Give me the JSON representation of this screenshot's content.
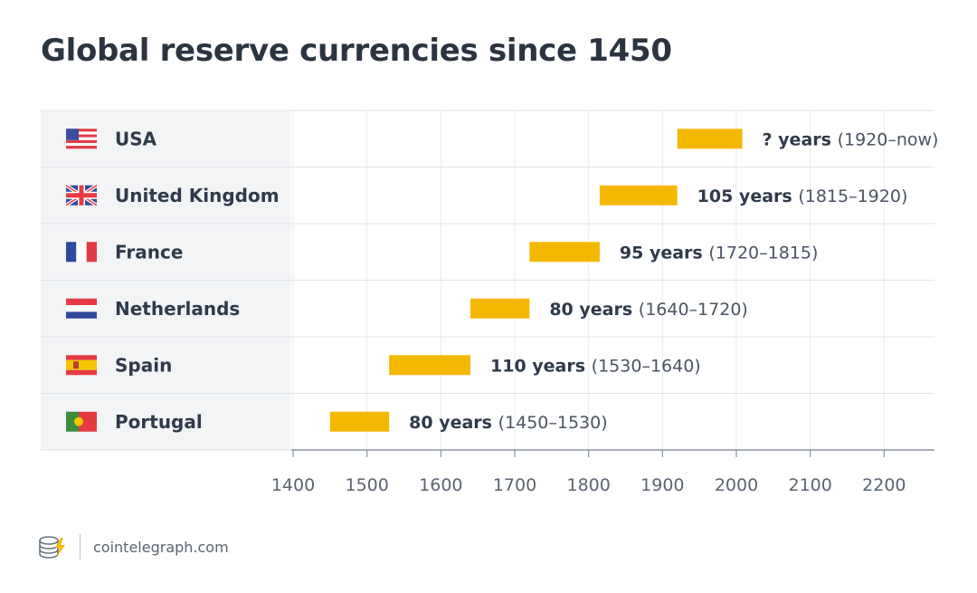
{
  "chart_data": {
    "type": "bar",
    "title": "Global reserve currencies since 1450",
    "categories": [
      "USA",
      "United Kingdom",
      "France",
      "Netherlands",
      "Spain",
      "Portugal"
    ],
    "flags": [
      "us-flag-icon",
      "uk-flag-icon",
      "france-flag-icon",
      "netherlands-flag-icon",
      "spain-flag-icon",
      "portugal-flag-icon"
    ],
    "ranges": [
      {
        "start": 1920,
        "end": 2008
      },
      {
        "start": 1815,
        "end": 1920
      },
      {
        "start": 1720,
        "end": 1815
      },
      {
        "start": 1640,
        "end": 1720
      },
      {
        "start": 1530,
        "end": 1640
      },
      {
        "start": 1450,
        "end": 1530
      }
    ],
    "labels": [
      {
        "bold": "? years",
        "paren": "(1920–now)"
      },
      {
        "bold": "105 years",
        "paren": "(1815–1920)"
      },
      {
        "bold": "95 years",
        "paren": "(1720–1815)"
      },
      {
        "bold": "80 years",
        "paren": "(1640–1720)"
      },
      {
        "bold": "110 years",
        "paren": "(1530–1640)"
      },
      {
        "bold": "80 years",
        "paren": "(1450–1530)"
      }
    ],
    "xticks": [
      1400,
      1500,
      1600,
      1700,
      1800,
      1900,
      2000,
      2100,
      2200
    ],
    "xlim": [
      1400,
      2270
    ],
    "grid": true,
    "bar_color": "#f5b800"
  },
  "footer": {
    "site": "cointelegraph.com"
  },
  "colors": {
    "bar": "#f5b800",
    "grid": "#e9ecef",
    "axis": "#8a939e",
    "label_panel": "#f3f4f6"
  }
}
